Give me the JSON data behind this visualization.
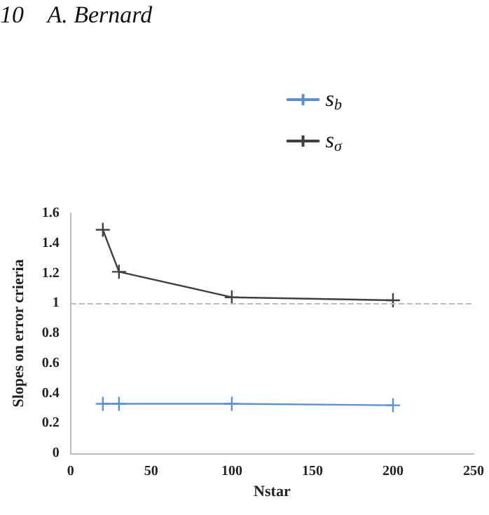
{
  "chart_data": {
    "type": "line",
    "xlabel": "Nstar",
    "ylabel": "Slopes on error crieria",
    "annotations": [
      "10    A. Bernard"
    ],
    "x": [
      20,
      30,
      100,
      200
    ],
    "series": [
      {
        "name": "s$_{b}$",
        "color": "#5b8fd6",
        "values": [
          0.33,
          0.33,
          0.33,
          0.32
        ]
      },
      {
        "name": "s$_{σ}$",
        "color": "#404040",
        "values": [
          1.49,
          1.21,
          1.04,
          1.02
        ]
      }
    ],
    "xlim": [
      0,
      250
    ],
    "xticks": [
      0,
      50,
      100,
      150,
      200,
      250
    ],
    "ylim": [
      0,
      1.6
    ],
    "yticks": [
      0,
      0.2,
      0.4,
      0.6,
      0.8,
      1,
      1.2,
      1.4,
      1.6
    ],
    "ref_lines": [
      {
        "axis": "y",
        "value": 1,
        "color": "#bbbbbb",
        "line_style": "dashed"
      }
    ],
    "grid": false,
    "legend": "top right",
    "marker": "cross",
    "line_style": "solid"
  }
}
